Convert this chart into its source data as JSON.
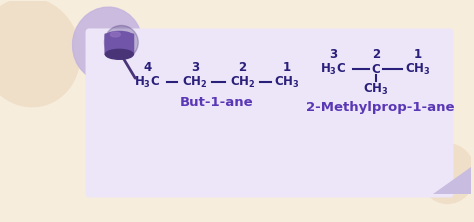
{
  "bg_color": "#f7eddc",
  "note_color": "#ece6f8",
  "note_shadow_color": "#c8bce0",
  "text_color": "#2a1f7a",
  "label_color": "#5a38b5",
  "dark_blob_color": "#c4b4e0",
  "light_blob_color": "#f0dfc8",
  "pin_body_color": "#7055a8",
  "pin_dark_color": "#4a3478",
  "pin_rim_color": "#9070c0",
  "but1ane_label": "But-1-ane",
  "methylprop_label": "2-Methylprop-1-ane",
  "figsize": [
    4.74,
    2.22
  ],
  "dpi": 100
}
